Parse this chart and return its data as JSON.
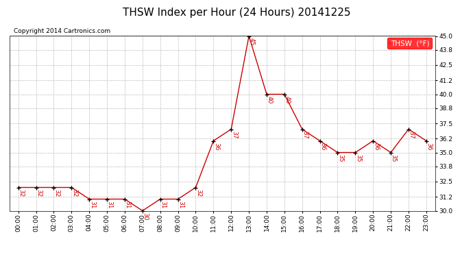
{
  "title": "THSW Index per Hour (24 Hours) 20141225",
  "copyright": "Copyright 2014 Cartronics.com",
  "legend_label": "THSW  (°F)",
  "hours": [
    "00:00",
    "01:00",
    "02:00",
    "03:00",
    "04:00",
    "05:00",
    "06:00",
    "07:00",
    "08:00",
    "09:00",
    "10:00",
    "11:00",
    "12:00",
    "13:00",
    "14:00",
    "15:00",
    "16:00",
    "17:00",
    "18:00",
    "19:00",
    "20:00",
    "21:00",
    "22:00",
    "23:00"
  ],
  "values": [
    32,
    32,
    32,
    32,
    31,
    31,
    31,
    30,
    31,
    31,
    32,
    36,
    37,
    45,
    40,
    40,
    37,
    36,
    35,
    35,
    36,
    35,
    37,
    36
  ],
  "ylim_min": 30.0,
  "ylim_max": 45.0,
  "yticks": [
    30.0,
    31.2,
    32.5,
    33.8,
    35.0,
    36.2,
    37.5,
    38.8,
    40.0,
    41.2,
    42.5,
    43.8,
    45.0
  ],
  "line_color": "#cc0000",
  "marker_color": "#000000",
  "bg_color": "#ffffff",
  "grid_color": "#bbbbbb",
  "title_fontsize": 11,
  "label_fontsize": 6.5,
  "annotation_fontsize": 6.5,
  "copyright_fontsize": 6.5,
  "legend_fontsize": 7.5
}
